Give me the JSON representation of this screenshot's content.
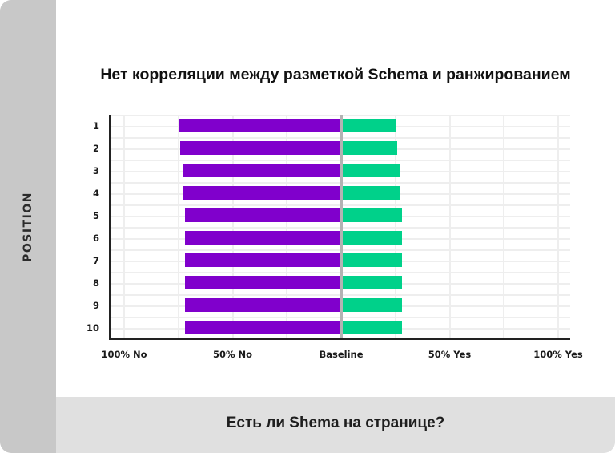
{
  "chart_data": {
    "type": "bar",
    "orientation": "horizontal-diverging",
    "title": "Нет корреляции между разметкой Schema и ранжированием",
    "xlabel": "Есть ли Shema на странице?",
    "ylabel": "POSITION",
    "categories": [
      "1",
      "2",
      "3",
      "4",
      "5",
      "6",
      "7",
      "8",
      "9",
      "10"
    ],
    "series": [
      {
        "name": "No",
        "color": "#8000cc",
        "values": [
          75,
          74,
          73,
          73,
          72,
          72,
          72,
          72,
          72,
          72
        ]
      },
      {
        "name": "Yes",
        "color": "#00d18a",
        "values": [
          25,
          26,
          27,
          27,
          28,
          28,
          28,
          28,
          28,
          28
        ]
      }
    ],
    "x_ticks": [
      "100% No",
      "50% No",
      "Baseline",
      "50% Yes",
      "100% Yes"
    ],
    "xlim": [
      -100,
      100
    ],
    "grid": true,
    "legend": "none"
  },
  "title": "Нет корреляции между разметкой Schema и ранжированием",
  "axis": {
    "y_label": "POSITION",
    "x_label": "Есть ли Shema на странице?",
    "ticks": [
      "100% No",
      "50% No",
      "Baseline",
      "50% Yes",
      "100% Yes"
    ]
  },
  "rows": [
    {
      "label": "1",
      "no": 75,
      "yes": 25
    },
    {
      "label": "2",
      "no": 74,
      "yes": 26
    },
    {
      "label": "3",
      "no": 73,
      "yes": 27
    },
    {
      "label": "4",
      "no": 73,
      "yes": 27
    },
    {
      "label": "5",
      "no": 72,
      "yes": 28
    },
    {
      "label": "6",
      "no": 72,
      "yes": 28
    },
    {
      "label": "7",
      "no": 72,
      "yes": 28
    },
    {
      "label": "8",
      "no": 72,
      "yes": 28
    },
    {
      "label": "9",
      "no": 72,
      "yes": 28
    },
    {
      "label": "10",
      "no": 72,
      "yes": 28
    }
  ],
  "colors": {
    "no": "#8000cc",
    "yes": "#00d18a",
    "baseline": "#b3b3b3",
    "strip": "#c8c8c8",
    "bottom_bar": "#e0e0e0"
  }
}
